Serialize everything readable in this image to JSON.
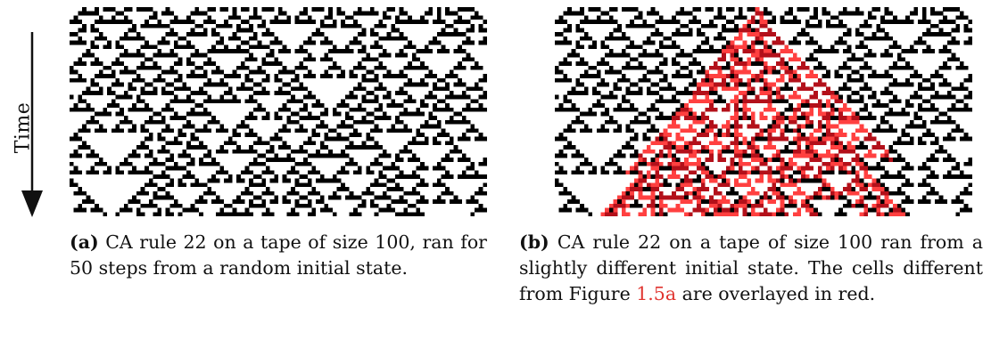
{
  "axis": {
    "time_label": "Time",
    "arrow_icon": "down-arrow-icon"
  },
  "ca": {
    "rule": 22,
    "tape_size": 100,
    "steps": 50,
    "cell_color": "#000000",
    "diff_color": "#ff4040"
  },
  "panel_a": {
    "tag": "(a)",
    "caption": "CA rule 22 on a tape of size 100, ran for 50 steps from a random initial state."
  },
  "panel_b": {
    "tag": "(b)",
    "caption_before": "CA rule 22 on a tape of size 100 ran from a slightly different initial state. The cells different from Figure ",
    "caption_ref": "1.5a",
    "caption_after": " are overlayed in red."
  }
}
